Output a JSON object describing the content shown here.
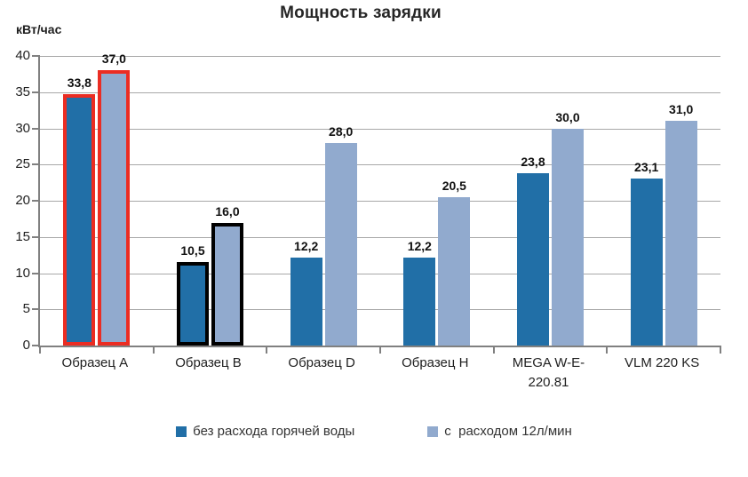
{
  "chart_data": {
    "type": "bar",
    "title": "Мощность зарядки",
    "ylabel": "кВт/час",
    "xlabel": "",
    "ylim": [
      0,
      40
    ],
    "yticks": [
      0,
      5,
      10,
      15,
      20,
      25,
      30,
      35,
      40
    ],
    "grid": true,
    "legend_position": "bottom",
    "categories": [
      "Образец A",
      "Образец B",
      "Образец D",
      "Образец H",
      "MEGA W-E-220.81",
      "VLM 220 KS"
    ],
    "series": [
      {
        "name": "без расхода горячей воды",
        "color": "#216FA7",
        "values": [
          33.8,
          10.5,
          12.2,
          12.2,
          23.8,
          23.1
        ],
        "labels": [
          "33,8",
          "10,5",
          "12,2",
          "12,2",
          "23,8",
          "23,1"
        ]
      },
      {
        "name": "с  расходом 12л/мин",
        "color": "#91AACE",
        "values": [
          37.0,
          16.0,
          28.0,
          20.5,
          30.0,
          31.0
        ],
        "labels": [
          "37,0",
          "16,0",
          "28,0",
          "20,5",
          "30,0",
          "31,0"
        ]
      }
    ],
    "highlights": [
      {
        "category_index": 0,
        "outline_color": "#EB2D23"
      },
      {
        "category_index": 1,
        "outline_color": "#000000"
      }
    ],
    "colors": {
      "gridline": "#A8A8A8",
      "axis": "#808080",
      "text": "#262626"
    }
  }
}
